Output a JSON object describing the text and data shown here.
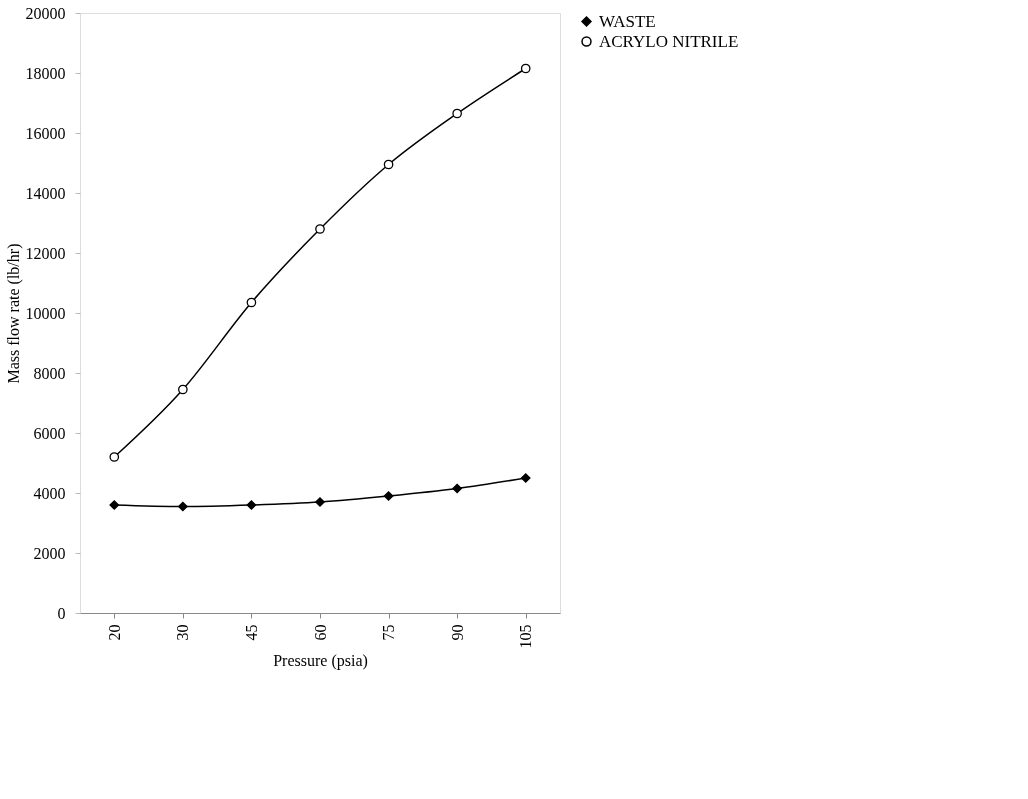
{
  "chart_data": {
    "type": "line",
    "xlabel": "Pressure (psia)",
    "ylabel": "Mass flow rate (lb/hr)",
    "categories": [
      "20",
      "30",
      "45",
      "60",
      "75",
      "90",
      "105"
    ],
    "series": [
      {
        "name": "WASTE",
        "color": "#000000",
        "marker": "diamond",
        "values": [
          3600,
          3550,
          3600,
          3700,
          3900,
          4150,
          4500
        ]
      },
      {
        "name": "ACRYLO NITRILE",
        "color": "#000000",
        "marker": "circle",
        "values": [
          5200,
          7450,
          10350,
          12800,
          14950,
          16650,
          18150
        ]
      }
    ],
    "ylim": [
      0,
      20000
    ],
    "yticks": [
      0,
      2000,
      4000,
      6000,
      8000,
      10000,
      12000,
      14000,
      16000,
      18000,
      20000
    ],
    "grid": false,
    "legend": "right"
  }
}
